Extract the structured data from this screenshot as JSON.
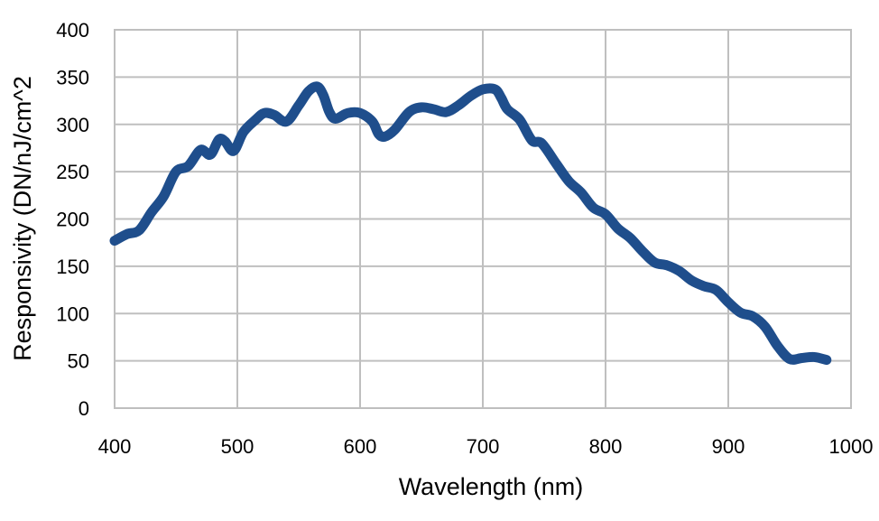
{
  "chart_data": {
    "type": "line",
    "title": "",
    "xlabel": "Wavelength (nm)",
    "ylabel": "Responsivity (DN/nJ/cm^2",
    "xlim": [
      400,
      1000
    ],
    "ylim": [
      0,
      400
    ],
    "x_ticks": [
      400,
      500,
      600,
      700,
      800,
      900,
      1000
    ],
    "y_ticks": [
      0,
      50,
      100,
      150,
      200,
      250,
      300,
      350,
      400
    ],
    "grid": true,
    "legend": "none",
    "series": [
      {
        "color": "#1f4e8c",
        "x": [
          400,
          410,
          420,
          430,
          440,
          450,
          460,
          470,
          478,
          485,
          490,
          497,
          505,
          515,
          522,
          530,
          540,
          550,
          558,
          565,
          570,
          575,
          580,
          590,
          600,
          610,
          615,
          620,
          628,
          640,
          650,
          660,
          670,
          680,
          690,
          700,
          710,
          715,
          720,
          730,
          740,
          748,
          760,
          770,
          780,
          790,
          800,
          810,
          820,
          830,
          840,
          850,
          860,
          870,
          880,
          890,
          900,
          910,
          920,
          930,
          940,
          950,
          960,
          970,
          980
        ],
        "y": [
          177,
          184,
          188,
          207,
          224,
          250,
          256,
          273,
          268,
          284,
          282,
          272,
          292,
          305,
          312,
          310,
          303,
          320,
          335,
          340,
          331,
          313,
          306,
          312,
          312,
          303,
          290,
          287,
          294,
          313,
          318,
          316,
          313,
          320,
          330,
          337,
          337,
          328,
          316,
          305,
          283,
          280,
          258,
          240,
          228,
          212,
          205,
          190,
          180,
          166,
          154,
          151,
          145,
          135,
          129,
          125,
          112,
          101,
          97,
          86,
          66,
          52,
          53,
          54,
          51
        ]
      }
    ]
  }
}
